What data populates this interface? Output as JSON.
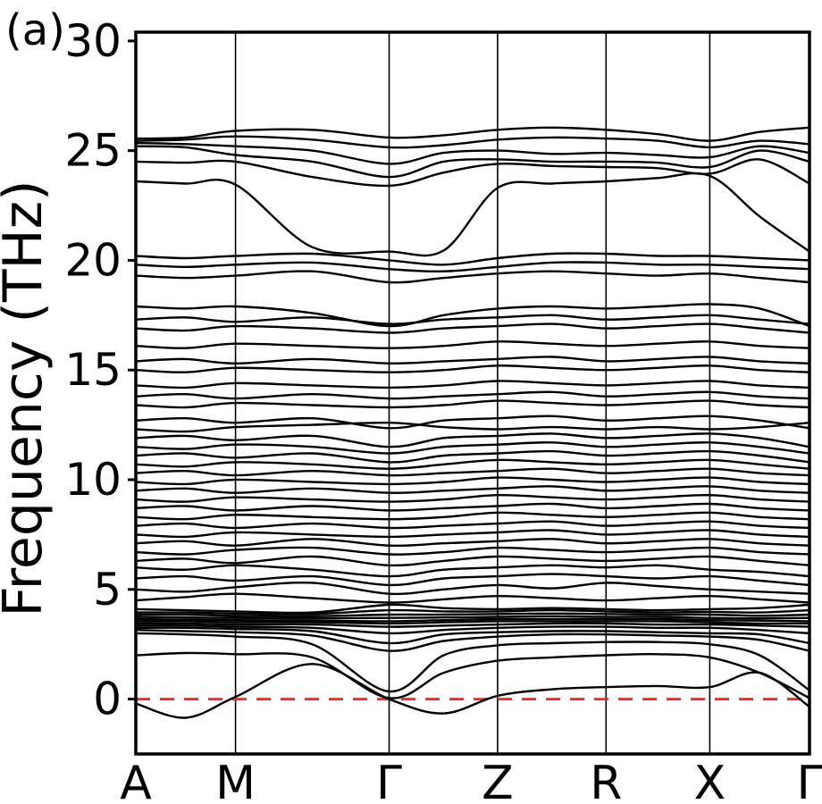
{
  "panel_label": "(a)",
  "style": {
    "band_color": "#000000",
    "frame_color": "#000000",
    "grid_color": "#000000",
    "zero_line_color": "#ee3124",
    "background": "#ffffff"
  },
  "chart_data": {
    "type": "line",
    "title": "",
    "xlabel": "",
    "ylabel": "Frequency (THz)",
    "ylim": [
      -2.5,
      30.4
    ],
    "yticks": [
      0,
      5,
      10,
      15,
      20,
      25,
      30
    ],
    "x_axis": {
      "labels": [
        "A",
        "M",
        "Γ",
        "Z",
        "R",
        "X",
        "Γ"
      ],
      "positions": [
        0,
        0.148,
        0.376,
        0.537,
        0.698,
        0.852,
        1.0
      ]
    },
    "grid": "vertical lines at high-symmetry points",
    "legend": "none",
    "zero_line": {
      "y": 0,
      "style": "dashed"
    },
    "x": [
      0,
      0.074,
      0.148,
      0.262,
      0.376,
      0.457,
      0.537,
      0.618,
      0.698,
      0.775,
      0.852,
      0.926,
      1.0
    ],
    "bands": [
      [
        -0.2,
        -0.85,
        0.1,
        1.6,
        0.0,
        -0.65,
        0.15,
        0.45,
        0.55,
        0.6,
        0.55,
        1.2,
        -0.35
      ],
      [
        2.0,
        2.1,
        2.05,
        1.9,
        0.05,
        1.2,
        1.75,
        1.9,
        2.0,
        2.05,
        1.9,
        1.2,
        0.05
      ],
      [
        3.0,
        2.95,
        2.85,
        2.5,
        0.35,
        2.0,
        2.45,
        2.55,
        2.6,
        2.6,
        2.5,
        2.0,
        0.4
      ],
      [
        3.15,
        3.1,
        3.05,
        2.9,
        2.2,
        2.65,
        2.85,
        2.95,
        2.95,
        2.9,
        2.85,
        2.7,
        2.2
      ],
      [
        3.25,
        3.25,
        3.2,
        3.1,
        2.55,
        2.95,
        3.05,
        3.1,
        3.1,
        3.05,
        3.0,
        2.95,
        2.55
      ],
      [
        3.35,
        3.35,
        3.3,
        3.25,
        3.0,
        3.15,
        3.25,
        3.3,
        3.3,
        3.25,
        3.25,
        3.15,
        3.0
      ],
      [
        3.45,
        3.45,
        3.4,
        3.4,
        3.3,
        3.35,
        3.4,
        3.45,
        3.45,
        3.4,
        3.4,
        3.35,
        3.3
      ],
      [
        3.55,
        3.55,
        3.5,
        3.5,
        3.45,
        3.5,
        3.55,
        3.55,
        3.55,
        3.55,
        3.5,
        3.45,
        3.45
      ],
      [
        3.65,
        3.62,
        3.6,
        3.58,
        3.55,
        3.6,
        3.65,
        3.65,
        3.65,
        3.65,
        3.6,
        3.58,
        3.55
      ],
      [
        3.75,
        3.72,
        3.7,
        3.68,
        3.7,
        3.72,
        3.75,
        3.78,
        3.75,
        3.75,
        3.7,
        3.68,
        3.7
      ],
      [
        3.85,
        3.85,
        3.8,
        3.78,
        3.85,
        3.85,
        3.88,
        3.9,
        3.88,
        3.85,
        3.85,
        3.8,
        3.85
      ],
      [
        3.95,
        3.95,
        3.9,
        3.88,
        4.05,
        4.0,
        4.0,
        4.05,
        4.0,
        3.95,
        3.98,
        3.95,
        4.05
      ],
      [
        4.1,
        4.05,
        4.0,
        3.95,
        4.3,
        4.15,
        4.1,
        4.15,
        4.1,
        4.05,
        4.1,
        4.15,
        4.3
      ],
      [
        4.5,
        4.65,
        4.8,
        4.6,
        4.4,
        4.55,
        4.7,
        4.6,
        4.5,
        4.6,
        4.7,
        4.55,
        4.4
      ],
      [
        5.0,
        4.9,
        5.1,
        5.3,
        4.8,
        5.0,
        5.2,
        5.05,
        5.3,
        5.15,
        5.0,
        4.9,
        4.8
      ],
      [
        5.5,
        5.6,
        5.4,
        5.6,
        5.2,
        5.5,
        5.6,
        5.7,
        5.6,
        5.5,
        5.6,
        5.4,
        5.2
      ],
      [
        6.0,
        5.9,
        6.1,
        5.9,
        5.6,
        5.9,
        6.0,
        6.1,
        6.0,
        6.1,
        5.9,
        5.8,
        5.6
      ],
      [
        6.3,
        6.4,
        6.2,
        6.5,
        6.1,
        6.3,
        6.5,
        6.4,
        6.3,
        6.4,
        6.5,
        6.3,
        6.1
      ],
      [
        6.7,
        6.6,
        6.8,
        6.9,
        6.6,
        6.7,
        6.9,
        6.8,
        6.7,
        6.8,
        6.9,
        6.7,
        6.6
      ],
      [
        7.1,
        7.2,
        7.0,
        7.3,
        7.0,
        7.1,
        7.2,
        7.3,
        7.1,
        7.2,
        7.3,
        7.1,
        7.0
      ],
      [
        7.5,
        7.4,
        7.6,
        7.5,
        7.4,
        7.5,
        7.6,
        7.7,
        7.5,
        7.6,
        7.7,
        7.5,
        7.4
      ],
      [
        7.9,
        8.0,
        7.8,
        8.0,
        7.8,
        7.9,
        8.0,
        8.1,
        7.9,
        8.0,
        8.1,
        7.9,
        7.8
      ],
      [
        8.3,
        8.2,
        8.4,
        8.3,
        8.2,
        8.3,
        8.5,
        8.4,
        8.3,
        8.4,
        8.5,
        8.3,
        8.2
      ],
      [
        8.7,
        8.8,
        8.6,
        8.8,
        8.6,
        8.7,
        8.8,
        8.9,
        8.7,
        8.8,
        8.9,
        8.7,
        8.6
      ],
      [
        9.1,
        9.0,
        9.2,
        9.1,
        9.0,
        9.1,
        9.3,
        9.2,
        9.1,
        9.2,
        9.3,
        9.1,
        9.0
      ],
      [
        9.5,
        9.6,
        9.4,
        9.6,
        9.4,
        9.5,
        9.6,
        9.7,
        9.5,
        9.6,
        9.7,
        9.5,
        9.4
      ],
      [
        9.9,
        9.8,
        10.0,
        9.9,
        9.8,
        9.9,
        10.1,
        10.0,
        9.9,
        10.0,
        10.1,
        9.9,
        9.8
      ],
      [
        10.3,
        10.4,
        10.2,
        10.4,
        10.2,
        10.3,
        10.4,
        10.5,
        10.3,
        10.4,
        10.5,
        10.3,
        10.2
      ],
      [
        10.7,
        10.6,
        10.8,
        10.7,
        10.5,
        10.7,
        10.9,
        10.8,
        10.7,
        10.8,
        10.9,
        10.7,
        10.5
      ],
      [
        11.1,
        11.2,
        11.0,
        11.2,
        10.8,
        11.1,
        11.2,
        11.3,
        11.1,
        11.2,
        11.3,
        11.1,
        10.8
      ],
      [
        11.5,
        11.4,
        11.6,
        11.5,
        11.2,
        11.5,
        11.6,
        11.7,
        11.5,
        11.6,
        11.7,
        11.5,
        11.2
      ],
      [
        11.9,
        12.0,
        11.8,
        12.0,
        11.5,
        11.9,
        12.0,
        12.1,
        11.9,
        12.0,
        12.1,
        11.9,
        11.5
      ],
      [
        12.3,
        12.2,
        12.4,
        12.5,
        12.6,
        12.4,
        12.3,
        12.4,
        12.3,
        12.4,
        12.3,
        12.4,
        12.6
      ],
      [
        12.7,
        12.8,
        12.6,
        12.8,
        12.35,
        12.7,
        12.8,
        12.9,
        12.7,
        12.8,
        12.9,
        12.7,
        12.35
      ],
      [
        13.4,
        13.3,
        13.5,
        13.4,
        13.3,
        13.4,
        13.6,
        13.5,
        13.4,
        13.5,
        13.6,
        13.4,
        13.3
      ],
      [
        13.8,
        13.9,
        13.7,
        13.9,
        13.7,
        13.8,
        13.9,
        14.0,
        13.8,
        13.9,
        14.0,
        13.8,
        13.7
      ],
      [
        14.3,
        14.2,
        14.4,
        14.3,
        14.2,
        14.3,
        14.5,
        14.4,
        14.3,
        14.4,
        14.5,
        14.3,
        14.2
      ],
      [
        15.0,
        14.9,
        15.1,
        15.0,
        14.9,
        15.0,
        15.2,
        15.1,
        15.0,
        15.1,
        15.2,
        15.0,
        14.9
      ],
      [
        15.4,
        15.5,
        15.3,
        15.5,
        15.3,
        15.4,
        15.5,
        15.6,
        15.4,
        15.5,
        15.6,
        15.4,
        15.3
      ],
      [
        16.1,
        16.0,
        16.2,
        16.1,
        16.0,
        16.1,
        16.3,
        16.2,
        16.1,
        16.2,
        16.3,
        16.1,
        16.0
      ],
      [
        16.9,
        16.8,
        17.0,
        16.9,
        16.7,
        16.9,
        17.0,
        17.1,
        16.9,
        17.0,
        17.1,
        16.9,
        16.7
      ],
      [
        17.3,
        17.4,
        17.2,
        17.4,
        17.1,
        17.3,
        17.4,
        17.5,
        17.3,
        17.4,
        17.5,
        17.3,
        17.1
      ],
      [
        17.9,
        17.8,
        17.9,
        17.6,
        17.0,
        17.5,
        17.8,
        17.9,
        17.8,
        17.9,
        18.0,
        17.8,
        17.0
      ],
      [
        19.3,
        19.2,
        19.3,
        19.5,
        19.0,
        19.2,
        19.4,
        19.5,
        19.4,
        19.3,
        19.4,
        19.2,
        19.0
      ],
      [
        19.8,
        19.7,
        19.8,
        19.9,
        19.6,
        19.5,
        19.7,
        19.9,
        19.9,
        19.8,
        19.8,
        19.7,
        19.6
      ],
      [
        20.2,
        20.1,
        20.2,
        20.3,
        20.0,
        19.8,
        20.1,
        20.3,
        20.3,
        20.2,
        20.2,
        20.1,
        20.0
      ],
      [
        23.6,
        23.5,
        23.45,
        20.6,
        20.4,
        20.45,
        23.3,
        23.5,
        23.6,
        23.75,
        23.85,
        22.0,
        20.4
      ],
      [
        24.5,
        24.45,
        24.5,
        23.8,
        23.4,
        24.0,
        24.4,
        24.3,
        24.25,
        24.2,
        23.95,
        24.6,
        23.5
      ],
      [
        25.2,
        25.15,
        24.8,
        24.5,
        23.8,
        24.5,
        24.6,
        24.5,
        24.5,
        24.45,
        24.25,
        25.0,
        24.5
      ],
      [
        25.35,
        25.3,
        25.2,
        25.0,
        24.4,
        24.9,
        25.0,
        24.85,
        24.9,
        24.8,
        24.7,
        25.2,
        24.9
      ],
      [
        25.45,
        25.5,
        25.65,
        25.5,
        25.15,
        25.25,
        25.5,
        25.6,
        25.55,
        25.45,
        25.15,
        25.45,
        25.3
      ],
      [
        25.55,
        25.6,
        25.9,
        25.95,
        25.6,
        25.7,
        25.95,
        26.05,
        25.95,
        25.75,
        25.45,
        25.85,
        26.05
      ]
    ]
  }
}
